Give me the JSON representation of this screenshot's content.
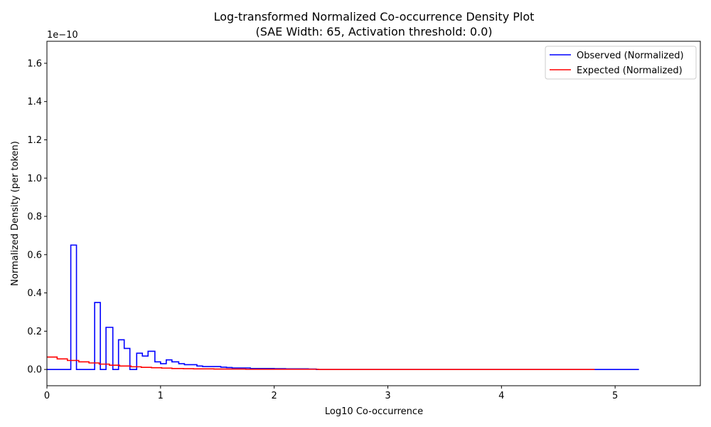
{
  "chart_data": {
    "type": "line",
    "title": "Log-transformed Normalized Co-occurrence Density Plot",
    "subtitle": "(SAE Width: 65, Activation threshold: 0.0)",
    "xlabel": "Log10 Co-occurrence",
    "ylabel": "Normalized Density (per token)",
    "y_offset_label": "1e−10",
    "xlim": [
      0,
      5.75
    ],
    "ylim": [
      -0.085,
      1.715
    ],
    "x_ticks": [
      0,
      1,
      2,
      3,
      4,
      5
    ],
    "x_tick_labels": [
      "0",
      "1",
      "2",
      "3",
      "4",
      "5"
    ],
    "y_ticks": [
      0.0,
      0.2,
      0.4,
      0.6,
      0.8,
      1.0,
      1.2,
      1.4,
      1.6
    ],
    "y_tick_labels": [
      "0.0",
      "0.2",
      "0.4",
      "0.6",
      "0.8",
      "1.0",
      "1.2",
      "1.4",
      "1.6"
    ],
    "grid": false,
    "legend_position": "top-right",
    "series": [
      {
        "name": "Observed (Normalized)",
        "color": "#0000ff",
        "step": "post",
        "x": [
          0,
          0.21,
          0.26,
          0.42,
          0.47,
          0.52,
          0.58,
          0.63,
          0.68,
          0.73,
          0.79,
          0.84,
          0.89,
          0.95,
          1.0,
          1.05,
          1.1,
          1.16,
          1.21,
          1.26,
          1.32,
          1.37,
          1.42,
          1.47,
          1.53,
          1.58,
          1.63,
          1.68,
          1.74,
          1.79,
          1.84,
          1.9,
          2.0,
          2.1,
          2.2,
          2.3,
          2.37,
          5.21
        ],
        "y": [
          0,
          0.65,
          0,
          0.35,
          0,
          0.22,
          0,
          0.155,
          0.11,
          0,
          0.085,
          0.07,
          0.095,
          0.04,
          0.03,
          0.05,
          0.04,
          0.03,
          0.025,
          0.025,
          0.018,
          0.015,
          0.015,
          0.015,
          0.012,
          0.01,
          0.008,
          0.008,
          0.008,
          0.005,
          0.005,
          0.005,
          0.004,
          0.003,
          0.003,
          0.002,
          0,
          0
        ]
      },
      {
        "name": "Expected (Normalized)",
        "color": "#ff0000",
        "step": "post",
        "x": [
          0,
          0.09,
          0.18,
          0.28,
          0.37,
          0.46,
          0.55,
          0.64,
          0.74,
          0.83,
          0.92,
          1.01,
          1.1,
          1.2,
          1.29,
          1.38,
          1.47,
          1.56,
          1.66,
          1.75,
          1.84,
          1.93,
          2.02,
          2.12,
          2.21,
          2.3,
          2.39,
          4.82
        ],
        "y": [
          0.065,
          0.055,
          0.047,
          0.04,
          0.034,
          0.028,
          0.022,
          0.018,
          0.014,
          0.011,
          0.009,
          0.007,
          0.005,
          0.004,
          0.003,
          0.003,
          0.002,
          0.002,
          0.002,
          0.001,
          0.001,
          0.001,
          0.001,
          0.001,
          0.001,
          0.001,
          0,
          0
        ]
      }
    ]
  }
}
